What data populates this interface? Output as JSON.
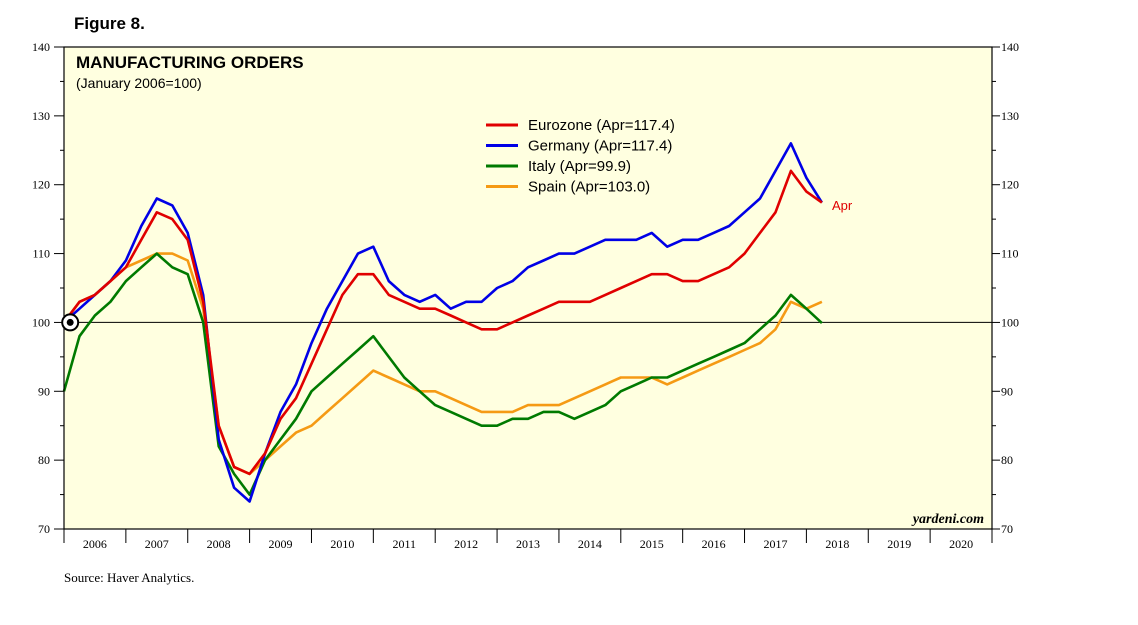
{
  "figure_label": "Figure 8.",
  "source": "Source: Haver Analytics.",
  "watermark": "yardeni.com",
  "end_label": "Apr",
  "chart_data": {
    "type": "line",
    "title": "MANUFACTURING ORDERS",
    "subtitle": "(January 2006=100)",
    "ylim": [
      70,
      140
    ],
    "xlim": [
      2006,
      2021
    ],
    "y_ticks": [
      70,
      80,
      90,
      100,
      110,
      120,
      130,
      140
    ],
    "x_tick_labels": [
      "2006",
      "2007",
      "2008",
      "2009",
      "2010",
      "2011",
      "2012",
      "2013",
      "2014",
      "2015",
      "2016",
      "2017",
      "2018",
      "2019",
      "2020"
    ],
    "reference_line": 100,
    "background": "#ffffe0",
    "series": [
      {
        "name": "Eurozone (Apr=117.4)",
        "color": "#e00000",
        "x": [
          2006.0,
          2006.25,
          2006.5,
          2006.75,
          2007.0,
          2007.25,
          2007.5,
          2007.75,
          2008.0,
          2008.25,
          2008.5,
          2008.75,
          2009.0,
          2009.25,
          2009.5,
          2009.75,
          2010.0,
          2010.25,
          2010.5,
          2010.75,
          2011.0,
          2011.25,
          2011.5,
          2011.75,
          2012.0,
          2012.25,
          2012.5,
          2012.75,
          2013.0,
          2013.25,
          2013.5,
          2013.75,
          2014.0,
          2014.25,
          2014.5,
          2014.75,
          2015.0,
          2015.25,
          2015.5,
          2015.75,
          2016.0,
          2016.25,
          2016.5,
          2016.75,
          2017.0,
          2017.25,
          2017.5,
          2017.75,
          2018.0,
          2018.25
        ],
        "values": [
          100,
          103,
          104,
          106,
          108,
          112,
          116,
          115,
          112,
          103,
          85,
          79,
          78,
          81,
          86,
          89,
          94,
          99,
          104,
          107,
          107,
          104,
          103,
          102,
          102,
          101,
          100,
          99,
          99,
          100,
          101,
          102,
          103,
          103,
          103,
          104,
          105,
          106,
          107,
          107,
          106,
          106,
          107,
          108,
          110,
          113,
          116,
          122,
          119,
          117.4
        ]
      },
      {
        "name": "Germany (Apr=117.4)",
        "color": "#0000e6",
        "x": [
          2006.0,
          2006.25,
          2006.5,
          2006.75,
          2007.0,
          2007.25,
          2007.5,
          2007.75,
          2008.0,
          2008.25,
          2008.5,
          2008.75,
          2009.0,
          2009.25,
          2009.5,
          2009.75,
          2010.0,
          2010.25,
          2010.5,
          2010.75,
          2011.0,
          2011.25,
          2011.5,
          2011.75,
          2012.0,
          2012.25,
          2012.5,
          2012.75,
          2013.0,
          2013.25,
          2013.5,
          2013.75,
          2014.0,
          2014.25,
          2014.5,
          2014.75,
          2015.0,
          2015.25,
          2015.5,
          2015.75,
          2016.0,
          2016.25,
          2016.5,
          2016.75,
          2017.0,
          2017.25,
          2017.5,
          2017.75,
          2018.0,
          2018.25
        ],
        "values": [
          100,
          102,
          104,
          106,
          109,
          114,
          118,
          117,
          113,
          104,
          83,
          76,
          74,
          81,
          87,
          91,
          97,
          102,
          106,
          110,
          111,
          106,
          104,
          103,
          104,
          102,
          103,
          103,
          105,
          106,
          108,
          109,
          110,
          110,
          111,
          112,
          112,
          112,
          113,
          111,
          112,
          112,
          113,
          114,
          116,
          118,
          122,
          126,
          121,
          117.4
        ]
      },
      {
        "name": "Italy (Apr=99.9)",
        "color": "#007a00",
        "x": [
          2006.0,
          2006.25,
          2006.5,
          2006.75,
          2007.0,
          2007.25,
          2007.5,
          2007.75,
          2008.0,
          2008.25,
          2008.5,
          2008.75,
          2009.0,
          2009.25,
          2009.5,
          2009.75,
          2010.0,
          2010.25,
          2010.5,
          2010.75,
          2011.0,
          2011.25,
          2011.5,
          2011.75,
          2012.0,
          2012.25,
          2012.5,
          2012.75,
          2013.0,
          2013.25,
          2013.5,
          2013.75,
          2014.0,
          2014.25,
          2014.5,
          2014.75,
          2015.0,
          2015.25,
          2015.5,
          2015.75,
          2016.0,
          2016.25,
          2016.5,
          2016.75,
          2017.0,
          2017.25,
          2017.5,
          2017.75,
          2018.0,
          2018.25
        ],
        "values": [
          90,
          98,
          101,
          103,
          106,
          108,
          110,
          108,
          107,
          100,
          82,
          78,
          75,
          80,
          83,
          86,
          90,
          92,
          94,
          96,
          98,
          95,
          92,
          90,
          88,
          87,
          86,
          85,
          85,
          86,
          86,
          87,
          87,
          86,
          87,
          88,
          90,
          91,
          92,
          92,
          93,
          94,
          95,
          96,
          97,
          99,
          101,
          104,
          102,
          99.9
        ]
      },
      {
        "name": "Spain (Apr=103.0)",
        "color": "#f59a14",
        "x": [
          2006.0,
          2006.25,
          2006.5,
          2006.75,
          2007.0,
          2007.25,
          2007.5,
          2007.75,
          2008.0,
          2008.25,
          2008.5,
          2008.75,
          2009.0,
          2009.25,
          2009.5,
          2009.75,
          2010.0,
          2010.25,
          2010.5,
          2010.75,
          2011.0,
          2011.25,
          2011.5,
          2011.75,
          2012.0,
          2012.25,
          2012.5,
          2012.75,
          2013.0,
          2013.25,
          2013.5,
          2013.75,
          2014.0,
          2014.25,
          2014.5,
          2014.75,
          2015.0,
          2015.25,
          2015.5,
          2015.75,
          2016.0,
          2016.25,
          2016.5,
          2016.75,
          2017.0,
          2017.25,
          2017.5,
          2017.75,
          2018.0,
          2018.25
        ],
        "values": [
          100,
          103,
          104,
          106,
          108,
          109,
          110,
          110,
          109,
          102,
          85,
          79,
          78,
          80,
          82,
          84,
          85,
          87,
          89,
          91,
          93,
          92,
          91,
          90,
          90,
          89,
          88,
          87,
          87,
          87,
          88,
          88,
          88,
          89,
          90,
          91,
          92,
          92,
          92,
          91,
          92,
          93,
          94,
          95,
          96,
          97,
          99,
          103,
          102,
          103.0
        ]
      }
    ]
  }
}
